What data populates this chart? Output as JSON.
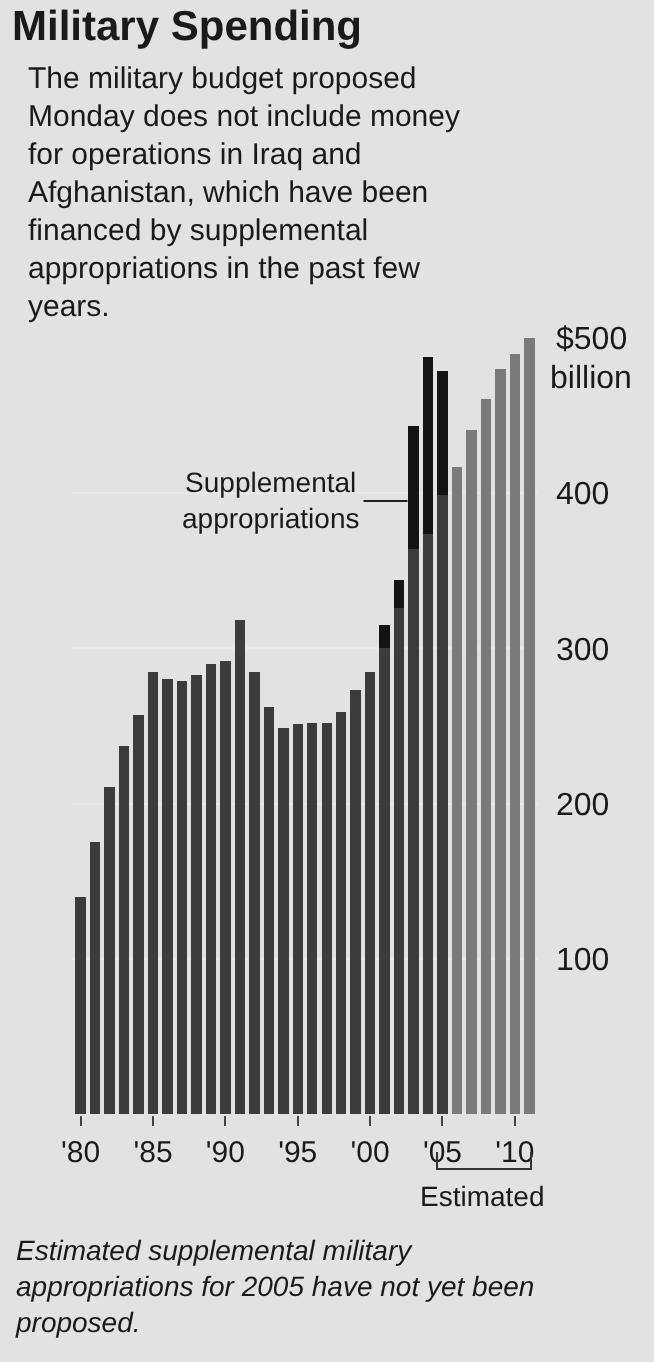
{
  "chart_data": {
    "type": "bar",
    "title": "Military Spending",
    "subtitle": "The military budget proposed Monday does not include money for operations in Iraq and Afghanistan, which have been financed by supplemental appropriations in the past few years.",
    "categories": [
      "'80",
      null,
      null,
      null,
      null,
      "'85",
      null,
      null,
      null,
      null,
      "'90",
      null,
      null,
      null,
      null,
      "'95",
      null,
      null,
      null,
      null,
      "'00",
      null,
      null,
      null,
      null,
      "'05",
      null,
      null,
      null,
      null,
      "'10",
      null
    ],
    "stacked": true,
    "series": [
      {
        "colors": [
          "#3c3c3c",
          "#3c3c3c",
          "#3c3c3c",
          "#3c3c3c",
          "#3c3c3c",
          "#3c3c3c",
          "#3c3c3c",
          "#3c3c3c",
          "#3c3c3c",
          "#3c3c3c",
          "#3c3c3c",
          "#3c3c3c",
          "#3c3c3c",
          "#3c3c3c",
          "#3c3c3c",
          "#3c3c3c",
          "#3c3c3c",
          "#3c3c3c",
          "#3c3c3c",
          "#3c3c3c",
          "#3c3c3c",
          "#3c3c3c",
          "#3c3c3c",
          "#3c3c3c",
          "#3c3c3c",
          "#3c3c3c",
          "#7a7a7a",
          "#7a7a7a",
          "#7a7a7a",
          "#7a7a7a",
          "#7a7a7a",
          "#7a7a7a"
        ],
        "values": [
          140,
          175,
          211,
          237,
          257,
          285,
          280,
          279,
          283,
          290,
          292,
          318,
          285,
          262,
          249,
          251,
          252,
          252,
          259,
          273,
          285,
          300,
          326,
          364,
          374,
          399,
          417,
          441,
          461,
          480,
          490,
          500
        ]
      },
      {
        "name": "Supplemental appropriations",
        "color": "#141414",
        "values": [
          null,
          null,
          null,
          null,
          null,
          null,
          null,
          null,
          null,
          null,
          null,
          null,
          null,
          null,
          null,
          null,
          null,
          null,
          null,
          null,
          null,
          15,
          18,
          79,
          114,
          80,
          null,
          null,
          null,
          null,
          null,
          null
        ]
      }
    ],
    "ylim": [
      0,
      500
    ],
    "yticks": [
      100,
      200,
      300,
      400,
      {
        "value": 500,
        "label": "$500"
      }
    ],
    "ylabel": "billion",
    "grid": "y",
    "legend": "left",
    "annotations": [
      "Estimated",
      "Estimated supplemental military appropriations for 2005 have not yet been proposed."
    ]
  }
}
